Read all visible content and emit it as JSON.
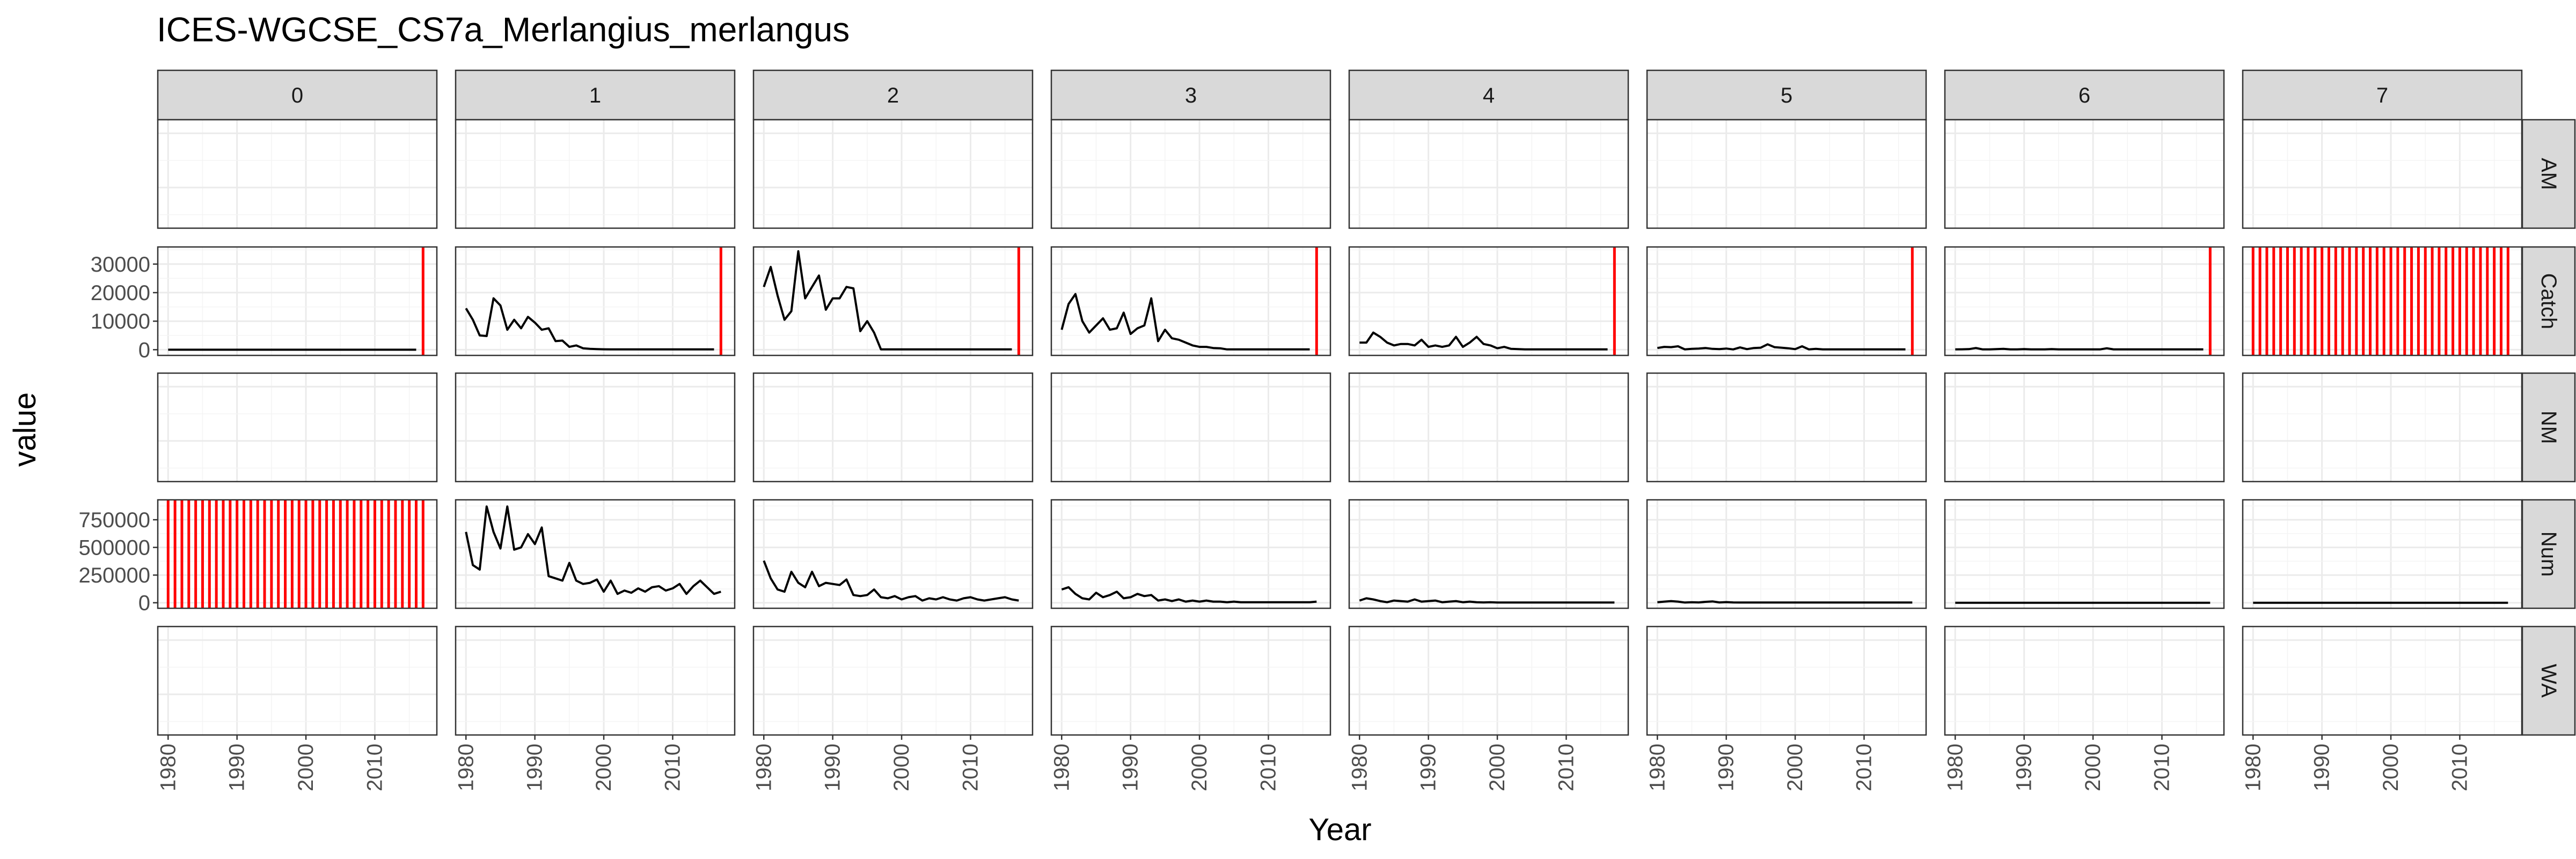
{
  "chart_data": {
    "type": "line",
    "title": "ICES-WGCSE_CS7a_Merlangius_merlangus",
    "xlabel": "Year",
    "ylabel": "value",
    "facet_cols": [
      "0",
      "1",
      "2",
      "3",
      "4",
      "5",
      "6",
      "7"
    ],
    "facet_rows": [
      "AM",
      "Catch",
      "NM",
      "Num",
      "WA"
    ],
    "xlim": [
      1978.5,
      2019
    ],
    "x_ticks": [
      1980,
      1990,
      2000,
      2010
    ],
    "grid": true,
    "rows": {
      "AM": {
        "ylim": null,
        "y_ticks": []
      },
      "Catch": {
        "ylim": [
          -2000,
          36000
        ],
        "y_ticks": [
          0,
          10000,
          20000,
          30000
        ]
      },
      "NM": {
        "ylim": null,
        "y_ticks": []
      },
      "Num": {
        "ylim": [
          -50000,
          930000
        ],
        "y_ticks": [
          0,
          250000,
          500000,
          750000
        ]
      },
      "WA": {
        "ylim": null,
        "y_ticks": []
      }
    },
    "series": [
      {
        "row": "Catch",
        "col": "0",
        "x": [
          1980,
          2016
        ],
        "y": [
          0,
          0
        ],
        "marker_year": 2017
      },
      {
        "row": "Catch",
        "col": "1",
        "x": [
          1980,
          1981,
          1982,
          1983,
          1984,
          1985,
          1986,
          1987,
          1988,
          1989,
          1990,
          1991,
          1992,
          1993,
          1994,
          1995,
          1996,
          1997,
          1998,
          1999,
          2000,
          2001,
          2002,
          2003,
          2004,
          2005,
          2006,
          2007,
          2008,
          2009,
          2010,
          2011,
          2012,
          2013,
          2014,
          2015,
          2016
        ],
        "y": [
          14500,
          10500,
          5000,
          4800,
          18000,
          15500,
          7000,
          10500,
          7500,
          11500,
          9500,
          7000,
          7500,
          3000,
          3200,
          1000,
          1500,
          500,
          300,
          200,
          150,
          100,
          100,
          100,
          100,
          100,
          100,
          100,
          100,
          100,
          100,
          100,
          100,
          100,
          100,
          100,
          100
        ],
        "marker_year": 2017
      },
      {
        "row": "Catch",
        "col": "2",
        "x": [
          1980,
          1981,
          1982,
          1983,
          1984,
          1985,
          1986,
          1987,
          1988,
          1989,
          1990,
          1991,
          1992,
          1993,
          1994,
          1995,
          1996,
          1997,
          1998,
          1999,
          2000,
          2001,
          2002,
          2003,
          2004,
          2005,
          2006,
          2007,
          2008,
          2009,
          2010,
          2011,
          2012,
          2013,
          2014,
          2015,
          2016
        ],
        "y": [
          22000,
          29000,
          19000,
          10500,
          13500,
          34500,
          18000,
          22000,
          26000,
          14000,
          18000,
          18000,
          22000,
          21500,
          6500,
          10000,
          6000,
          100,
          100,
          100,
          100,
          100,
          100,
          100,
          100,
          100,
          100,
          100,
          100,
          100,
          100,
          100,
          100,
          100,
          100,
          100,
          100
        ],
        "marker_year": 2017
      },
      {
        "row": "Catch",
        "col": "3",
        "x": [
          1980,
          1981,
          1982,
          1983,
          1984,
          1985,
          1986,
          1987,
          1988,
          1989,
          1990,
          1991,
          1992,
          1993,
          1994,
          1995,
          1996,
          1997,
          1998,
          1999,
          2000,
          2001,
          2002,
          2003,
          2004,
          2005,
          2006,
          2007,
          2008,
          2009,
          2010,
          2011,
          2012,
          2013,
          2014,
          2015,
          2016
        ],
        "y": [
          7000,
          16000,
          19500,
          10000,
          6000,
          8500,
          11000,
          7000,
          7500,
          13000,
          5500,
          7500,
          8500,
          18000,
          3000,
          7000,
          4000,
          3500,
          2500,
          1500,
          1000,
          1000,
          600,
          500,
          100,
          100,
          100,
          100,
          100,
          100,
          100,
          100,
          100,
          100,
          100,
          100,
          100
        ],
        "marker_year": 2017
      },
      {
        "row": "Catch",
        "col": "4",
        "x": [
          1980,
          1981,
          1982,
          1983,
          1984,
          1985,
          1986,
          1987,
          1988,
          1989,
          1990,
          1991,
          1992,
          1993,
          1994,
          1995,
          1996,
          1997,
          1998,
          1999,
          2000,
          2001,
          2002,
          2003,
          2004,
          2005,
          2006,
          2007,
          2008,
          2009,
          2010,
          2011,
          2012,
          2013,
          2014,
          2015,
          2016
        ],
        "y": [
          2500,
          2500,
          6000,
          4500,
          2500,
          1500,
          2000,
          2000,
          1500,
          3500,
          1000,
          1500,
          1000,
          1500,
          4500,
          1000,
          2500,
          4500,
          2000,
          1500,
          500,
          1000,
          300,
          200,
          100,
          100,
          100,
          100,
          100,
          100,
          100,
          100,
          100,
          100,
          100,
          100,
          100
        ],
        "marker_year": 2017
      },
      {
        "row": "Catch",
        "col": "5",
        "x": [
          1980,
          1981,
          1982,
          1983,
          1984,
          1985,
          1986,
          1987,
          1988,
          1989,
          1990,
          1991,
          1992,
          1993,
          1994,
          1995,
          1996,
          1997,
          1998,
          1999,
          2000,
          2001,
          2002,
          2003,
          2004,
          2005,
          2006,
          2007,
          2008,
          2009,
          2010,
          2011,
          2012,
          2013,
          2014,
          2015,
          2016
        ],
        "y": [
          600,
          1000,
          900,
          1200,
          100,
          300,
          400,
          600,
          300,
          200,
          400,
          100,
          800,
          200,
          600,
          700,
          1900,
          900,
          700,
          500,
          200,
          1200,
          100,
          300,
          100,
          100,
          100,
          100,
          100,
          100,
          100,
          100,
          100,
          100,
          100,
          100,
          100
        ],
        "marker_year": 2017
      },
      {
        "row": "Catch",
        "col": "6",
        "x": [
          1980,
          1981,
          1982,
          1983,
          1984,
          1985,
          1986,
          1987,
          1988,
          1989,
          1990,
          1991,
          1992,
          1993,
          1994,
          1995,
          1996,
          1997,
          1998,
          1999,
          2000,
          2001,
          2002,
          2003,
          2004,
          2005,
          2006,
          2007,
          2008,
          2009,
          2010,
          2011,
          2012,
          2013,
          2014,
          2015,
          2016
        ],
        "y": [
          100,
          150,
          200,
          600,
          100,
          100,
          200,
          300,
          100,
          100,
          200,
          100,
          100,
          100,
          200,
          100,
          100,
          100,
          100,
          100,
          100,
          100,
          500,
          100,
          100,
          100,
          100,
          100,
          100,
          100,
          100,
          100,
          100,
          100,
          100,
          100,
          100
        ],
        "marker_year": 2017
      },
      {
        "row": "Catch",
        "col": "7",
        "x": [],
        "y": [],
        "marker_years": [
          1980,
          1981,
          1982,
          1983,
          1984,
          1985,
          1986,
          1987,
          1988,
          1989,
          1990,
          1991,
          1992,
          1993,
          1994,
          1995,
          1996,
          1997,
          1998,
          1999,
          2000,
          2001,
          2002,
          2003,
          2004,
          2005,
          2006,
          2007,
          2008,
          2009,
          2010,
          2011,
          2012,
          2013,
          2014,
          2015,
          2016,
          2017
        ]
      },
      {
        "row": "Num",
        "col": "0",
        "x": [],
        "y": [],
        "marker_years": [
          1980,
          1981,
          1982,
          1983,
          1984,
          1985,
          1986,
          1987,
          1988,
          1989,
          1990,
          1991,
          1992,
          1993,
          1994,
          1995,
          1996,
          1997,
          1998,
          1999,
          2000,
          2001,
          2002,
          2003,
          2004,
          2005,
          2006,
          2007,
          2008,
          2009,
          2010,
          2011,
          2012,
          2013,
          2014,
          2015,
          2016,
          2017
        ]
      },
      {
        "row": "Num",
        "col": "1",
        "x": [
          1980,
          1981,
          1982,
          1983,
          1984,
          1985,
          1986,
          1987,
          1988,
          1989,
          1990,
          1991,
          1992,
          1993,
          1994,
          1995,
          1996,
          1997,
          1998,
          1999,
          2000,
          2001,
          2002,
          2003,
          2004,
          2005,
          2006,
          2007,
          2008,
          2009,
          2010,
          2011,
          2012,
          2013,
          2014,
          2015,
          2016,
          2017
        ],
        "y": [
          640000,
          340000,
          300000,
          870000,
          640000,
          490000,
          870000,
          480000,
          500000,
          620000,
          530000,
          680000,
          240000,
          220000,
          200000,
          360000,
          200000,
          170000,
          180000,
          210000,
          100000,
          200000,
          80000,
          110000,
          90000,
          130000,
          100000,
          140000,
          150000,
          110000,
          130000,
          170000,
          80000,
          150000,
          200000,
          140000,
          80000,
          100000
        ]
      },
      {
        "row": "Num",
        "col": "2",
        "x": [
          1980,
          1981,
          1982,
          1983,
          1984,
          1985,
          1986,
          1987,
          1988,
          1989,
          1990,
          1991,
          1992,
          1993,
          1994,
          1995,
          1996,
          1997,
          1998,
          1999,
          2000,
          2001,
          2002,
          2003,
          2004,
          2005,
          2006,
          2007,
          2008,
          2009,
          2010,
          2011,
          2012,
          2013,
          2014,
          2015,
          2016,
          2017
        ],
        "y": [
          380000,
          220000,
          120000,
          100000,
          280000,
          180000,
          140000,
          280000,
          150000,
          180000,
          170000,
          160000,
          210000,
          70000,
          60000,
          70000,
          120000,
          50000,
          40000,
          60000,
          30000,
          50000,
          60000,
          20000,
          40000,
          30000,
          50000,
          30000,
          20000,
          40000,
          50000,
          30000,
          20000,
          30000,
          40000,
          50000,
          30000,
          20000
        ]
      },
      {
        "row": "Num",
        "col": "3",
        "x": [
          1980,
          1981,
          1982,
          1983,
          1984,
          1985,
          1986,
          1987,
          1988,
          1989,
          1990,
          1991,
          1992,
          1993,
          1994,
          1995,
          1996,
          1997,
          1998,
          1999,
          2000,
          2001,
          2002,
          2003,
          2004,
          2005,
          2006,
          2007,
          2008,
          2009,
          2010,
          2011,
          2012,
          2013,
          2014,
          2015,
          2016,
          2017
        ],
        "y": [
          120000,
          140000,
          80000,
          40000,
          30000,
          90000,
          50000,
          70000,
          100000,
          40000,
          50000,
          80000,
          60000,
          70000,
          20000,
          30000,
          15000,
          30000,
          10000,
          20000,
          10000,
          20000,
          10000,
          10000,
          5000,
          10000,
          5000,
          5000,
          5000,
          5000,
          5000,
          5000,
          5000,
          5000,
          5000,
          5000,
          5000,
          10000
        ]
      },
      {
        "row": "Num",
        "col": "4",
        "x": [
          1980,
          1981,
          1982,
          1983,
          1984,
          1985,
          1986,
          1987,
          1988,
          1989,
          1990,
          1991,
          1992,
          1993,
          1994,
          1995,
          1996,
          1997,
          1998,
          1999,
          2000,
          2001,
          2002,
          2003,
          2004,
          2005,
          2006,
          2007,
          2008,
          2009,
          2010,
          2011,
          2012,
          2013,
          2014,
          2015,
          2016,
          2017
        ],
        "y": [
          20000,
          40000,
          30000,
          15000,
          5000,
          20000,
          15000,
          10000,
          30000,
          10000,
          15000,
          20000,
          5000,
          10000,
          15000,
          5000,
          10000,
          5000,
          3000,
          5000,
          2000,
          2000,
          2000,
          2000,
          2000,
          2000,
          2000,
          2000,
          2000,
          2000,
          2000,
          2000,
          2000,
          2000,
          2000,
          2000,
          2000,
          2000
        ]
      },
      {
        "row": "Num",
        "col": "5",
        "x": [
          1980,
          1981,
          1982,
          1983,
          1984,
          1985,
          1986,
          1987,
          1988,
          1989,
          1990,
          1991,
          1992,
          1993,
          1994,
          1995,
          1996,
          1997,
          1998,
          1999,
          2000,
          2001,
          2002,
          2003,
          2004,
          2005,
          2006,
          2007,
          2008,
          2009,
          2010,
          2011,
          2012,
          2013,
          2014,
          2015,
          2016,
          2017
        ],
        "y": [
          5000,
          10000,
          15000,
          10000,
          2000,
          5000,
          3000,
          8000,
          12000,
          3000,
          6000,
          3000,
          2000,
          2000,
          2000,
          2000,
          2000,
          2000,
          2000,
          2000,
          2000,
          2000,
          2000,
          2000,
          2000,
          2000,
          2000,
          2000,
          2000,
          2000,
          2000,
          2000,
          2000,
          2000,
          2000,
          2000,
          2000,
          2000
        ]
      },
      {
        "row": "Num",
        "col": "6",
        "x": [
          1980,
          2017
        ],
        "y": [
          0,
          0
        ]
      },
      {
        "row": "Num",
        "col": "7",
        "x": [
          1980,
          2017
        ],
        "y": [
          0,
          0
        ]
      }
    ]
  }
}
